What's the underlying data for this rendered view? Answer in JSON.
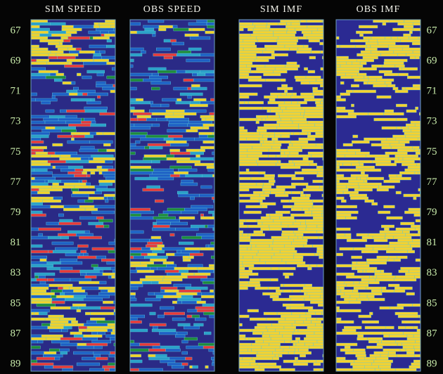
{
  "panels": [
    {
      "title": "SIM SPEED"
    },
    {
      "title": "OBS SPEED"
    },
    {
      "title": "SIM IMF"
    },
    {
      "title": "OBS IMF"
    }
  ],
  "left_axis": [
    "67",
    "69",
    "71",
    "73",
    "75",
    "77",
    "79",
    "81",
    "83",
    "85",
    "87",
    "89"
  ],
  "right_axis": [
    "67",
    "69",
    "71",
    "73",
    "75",
    "77",
    "79",
    "81",
    "83",
    "85",
    "87",
    "89"
  ]
}
